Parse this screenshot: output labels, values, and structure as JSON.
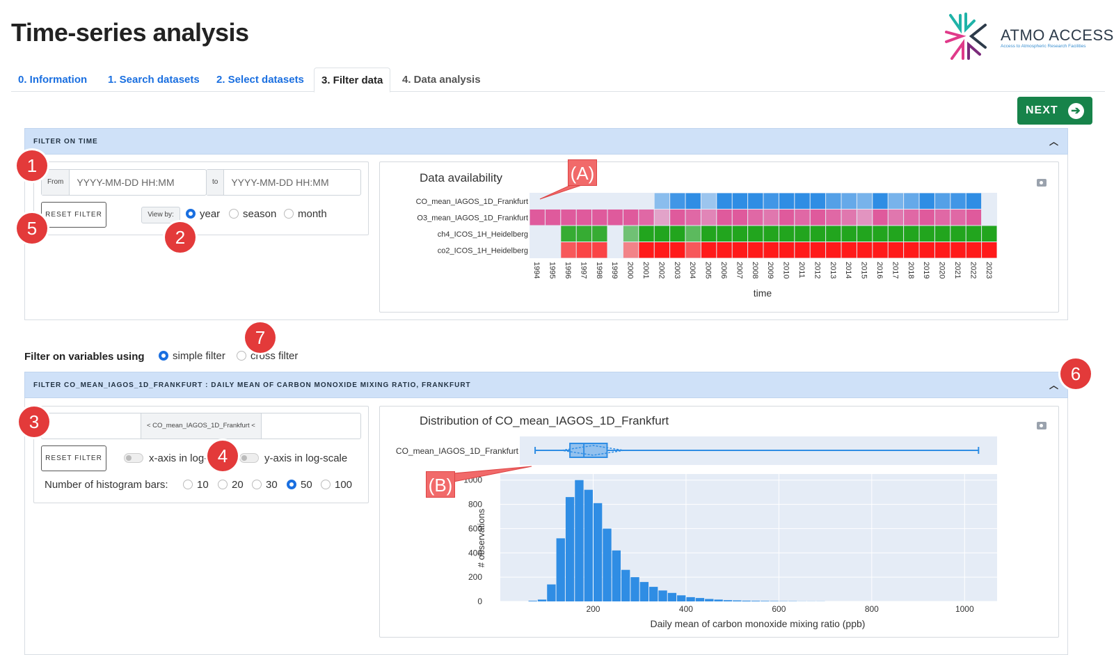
{
  "page_title": "Time-series analysis",
  "logo": {
    "name": "ATMO ACCESS",
    "tagline": "Access to Atmospheric Research Facilities"
  },
  "tabs": [
    {
      "label": "0. Information"
    },
    {
      "label": "1. Search datasets"
    },
    {
      "label": "2. Select datasets"
    },
    {
      "label": "3. Filter data"
    },
    {
      "label": "4. Data analysis"
    }
  ],
  "next_label": "NEXT",
  "time_filter": {
    "header": "FILTER ON TIME",
    "from_label": "From",
    "from_placeholder": "YYYY-MM-DD HH:MM",
    "to_label": "to",
    "to_placeholder": "YYYY-MM-DD HH:MM",
    "reset_label": "RESET FILTER",
    "view_by_label": "View by:",
    "view_options": [
      "year",
      "season",
      "month"
    ],
    "view_selected": "year"
  },
  "availability_chart": {
    "title": "Data availability",
    "xlabel": "time",
    "years": [
      "1994",
      "1995",
      "1996",
      "1997",
      "1998",
      "1999",
      "2000",
      "2001",
      "2002",
      "2003",
      "2004",
      "2005",
      "2006",
      "2007",
      "2008",
      "2009",
      "2010",
      "2011",
      "2012",
      "2013",
      "2014",
      "2015",
      "2016",
      "2017",
      "2018",
      "2019",
      "2020",
      "2021",
      "2022",
      "2023"
    ],
    "series": [
      {
        "name": "CO_mean_IAGOS_1D_Frankfurt",
        "color": "#2f8de4",
        "values": [
          0,
          0,
          0,
          0,
          0,
          0,
          0,
          0,
          0.5,
          0.9,
          1,
          0.4,
          1,
          1,
          1,
          0.9,
          1,
          1,
          1,
          0.8,
          0.7,
          0.6,
          1,
          0.6,
          0.7,
          1,
          0.8,
          0.9,
          1,
          0
        ]
      },
      {
        "name": "O3_mean_IAGOS_1D_Frankfurt",
        "color": "#df5a9c",
        "values": [
          1,
          1,
          1,
          1,
          1,
          1,
          1,
          0.9,
          0.5,
          1,
          0.9,
          0.7,
          1,
          1,
          0.9,
          0.8,
          1,
          0.9,
          1,
          0.9,
          0.8,
          0.6,
          1,
          0.8,
          0.9,
          1,
          0.9,
          0.9,
          1,
          0
        ]
      },
      {
        "name": "ch4_ICOS_1H_Heidelberg",
        "color": "#22a51e",
        "values": [
          0,
          0,
          0.9,
          0.9,
          0.9,
          0,
          0.6,
          1,
          1,
          1,
          0.7,
          1,
          1,
          1,
          1,
          1,
          1,
          1,
          1,
          1,
          1,
          1,
          1,
          1,
          1,
          1,
          1,
          1,
          1,
          1
        ]
      },
      {
        "name": "co2_ICOS_1H_Heidelberg",
        "color": "#ff1a1a",
        "values": [
          0,
          0,
          0.7,
          0.8,
          0.8,
          0,
          0.5,
          1,
          1,
          1,
          0.7,
          1,
          1,
          1,
          1,
          1,
          1,
          1,
          1,
          1,
          1,
          1,
          1,
          1,
          1,
          1,
          1,
          1,
          1,
          1
        ]
      }
    ]
  },
  "variables_filter": {
    "label": "Filter on variables using",
    "options": [
      "simple filter",
      "cross filter"
    ],
    "selected": "simple filter"
  },
  "co_filter": {
    "header": "FILTER CO_MEAN_IAGOS_1D_FRANKFURT : DAILY MEAN OF CARBON MONOXIDE MIXING RATIO, FRANKFURT",
    "range_label": "< CO_mean_IAGOS_1D_Frankfurt <",
    "reset_label": "RESET FILTER",
    "x_log_label": "x-axis in log-scale",
    "y_log_label": "y-axis in log-scale",
    "bars_label": "Number of histogram bars:",
    "bars_options": [
      "10",
      "20",
      "30",
      "50",
      "100"
    ],
    "bars_selected": "50"
  },
  "distribution_chart": {
    "title": "Distribution of CO_mean_IAGOS_1D_Frankfurt",
    "box_label": "CO_mean_IAGOS_1D_Frankfurt",
    "xlabel": "Daily mean of carbon monoxide mixing ratio (ppb)",
    "ylabel": "# observations",
    "color": "#2f8de4"
  },
  "chart_data": {
    "type": "bar",
    "title": "Distribution of CO_mean_IAGOS_1D_Frankfurt",
    "xlabel": "Daily mean of carbon monoxide mixing ratio (ppb)",
    "ylabel": "# observations",
    "xlim": [
      0,
      1070
    ],
    "ylim": [
      0,
      1050
    ],
    "xticks": [
      "200",
      "400",
      "600",
      "800",
      "1000"
    ],
    "yticks": [
      "0",
      "200",
      "400",
      "600",
      "800",
      "1000"
    ],
    "bin_width": 20,
    "bins_start": 60,
    "counts": [
      5,
      15,
      140,
      520,
      860,
      1000,
      920,
      810,
      600,
      420,
      260,
      200,
      160,
      120,
      90,
      70,
      50,
      35,
      28,
      20,
      15,
      10,
      8,
      6,
      5,
      4,
      3,
      2,
      2,
      1,
      1,
      1
    ],
    "box": {
      "min": 75,
      "q1": 150,
      "median": 180,
      "q3": 230,
      "max": 1030,
      "mean": 200
    }
  },
  "annotations": {
    "badges": [
      "1",
      "2",
      "3",
      "4",
      "5",
      "6",
      "7"
    ],
    "callouts": [
      "(A)",
      "(B)"
    ]
  }
}
